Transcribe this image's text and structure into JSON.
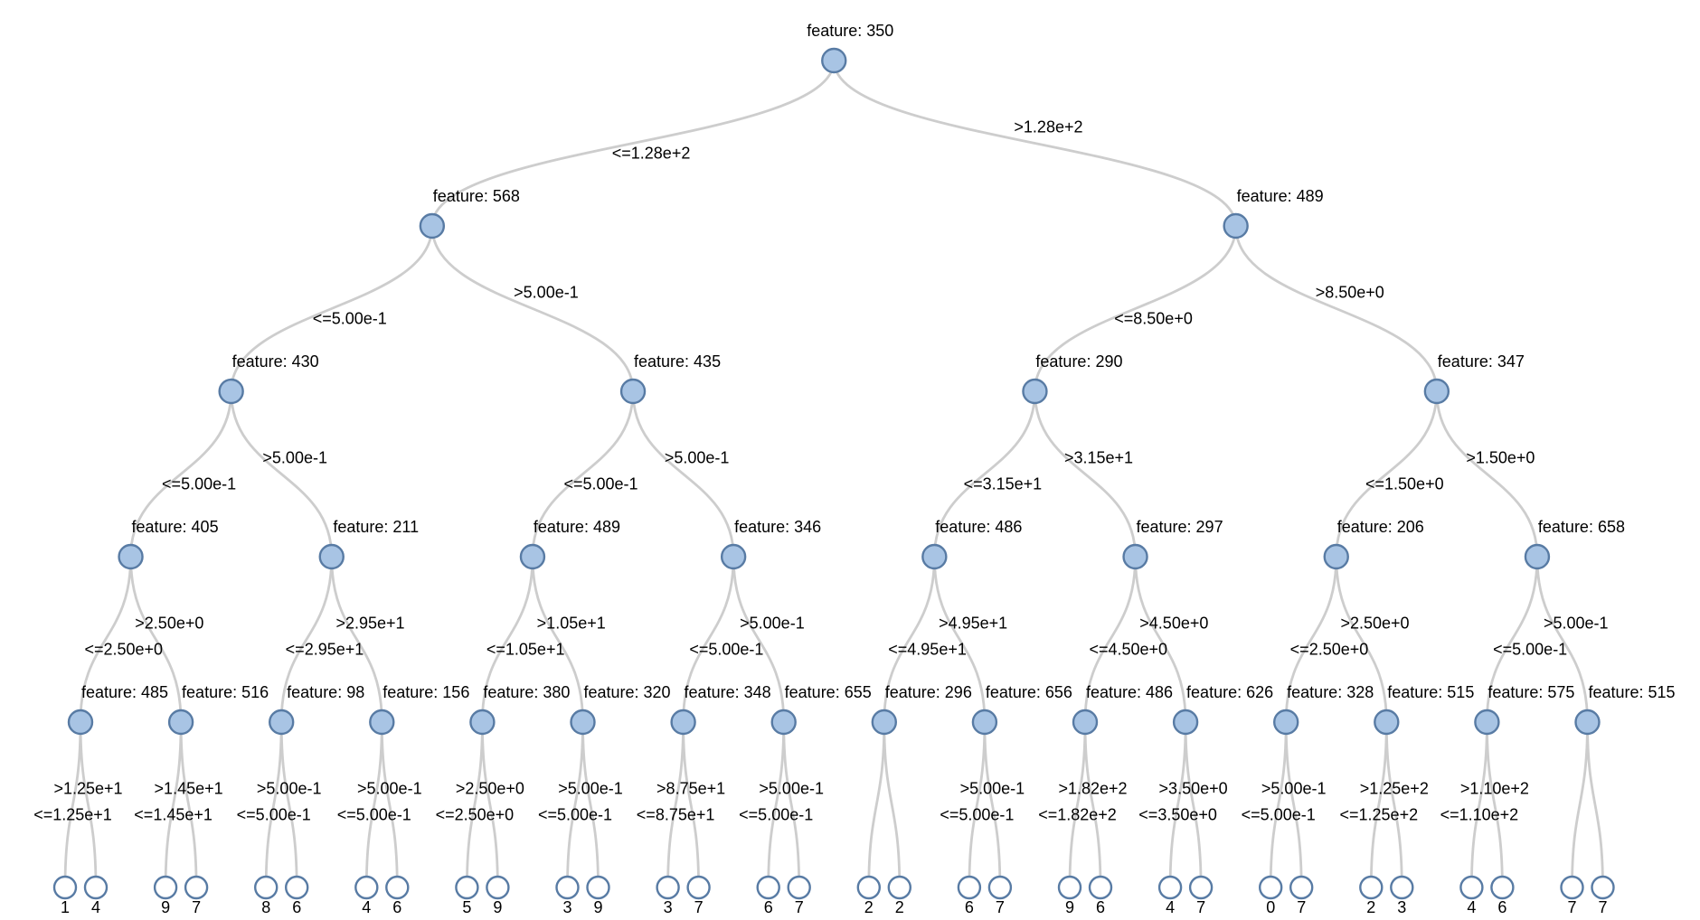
{
  "diagram": {
    "type": "decision-tree",
    "background": "#ffffff",
    "node_label_prefix": "feature: ",
    "colors": {
      "edge": "#cdcdcd",
      "internal_fill": "#a8c4e4",
      "internal_stroke": "#587ba4",
      "leaf_fill": "#ffffff",
      "leaf_stroke": "#587ba4",
      "text": "#000000"
    },
    "tree": {
      "feature": "350",
      "left_label": "<=1.28e+2",
      "right_label": ">1.28e+2",
      "left": {
        "feature": "568",
        "left_label": "<=5.00e-1",
        "right_label": ">5.00e-1",
        "left": {
          "feature": "430",
          "left_label": "<=5.00e-1",
          "right_label": ">5.00e-1",
          "left": {
            "feature": "405",
            "left_label": "<=2.50e+0",
            "right_label": ">2.50e+0",
            "left": {
              "feature": "485",
              "left_label": "<=1.25e+1",
              "right_label": ">1.25e+1",
              "left": {
                "value": "1"
              },
              "right": {
                "value": "4"
              }
            },
            "right": {
              "feature": "516",
              "left_label": "<=1.45e+1",
              "right_label": ">1.45e+1",
              "left": {
                "value": "9"
              },
              "right": {
                "value": "7"
              }
            }
          },
          "right": {
            "feature": "211",
            "left_label": "<=2.95e+1",
            "right_label": ">2.95e+1",
            "left": {
              "feature": "98",
              "left_label": "<=5.00e-1",
              "right_label": ">5.00e-1",
              "left": {
                "value": "8"
              },
              "right": {
                "value": "6"
              }
            },
            "right": {
              "feature": "156",
              "left_label": "<=5.00e-1",
              "right_label": ">5.00e-1",
              "left": {
                "value": "4"
              },
              "right": {
                "value": "6"
              }
            }
          }
        },
        "right": {
          "feature": "435",
          "left_label": "<=5.00e-1",
          "right_label": ">5.00e-1",
          "left": {
            "feature": "489",
            "left_label": "<=1.05e+1",
            "right_label": ">1.05e+1",
            "left": {
              "feature": "380",
              "left_label": "<=2.50e+0",
              "right_label": ">2.50e+0",
              "left": {
                "value": "5"
              },
              "right": {
                "value": "9"
              }
            },
            "right": {
              "feature": "320",
              "left_label": "<=5.00e-1",
              "right_label": ">5.00e-1",
              "left": {
                "value": "3"
              },
              "right": {
                "value": "9"
              }
            }
          },
          "right": {
            "feature": "346",
            "left_label": "<=5.00e-1",
            "right_label": ">5.00e-1",
            "left": {
              "feature": "348",
              "left_label": "<=8.75e+1",
              "right_label": ">8.75e+1",
              "left": {
                "value": "3"
              },
              "right": {
                "value": "7"
              }
            },
            "right": {
              "feature": "655",
              "left_label": "<=5.00e-1",
              "right_label": ">5.00e-1",
              "left": {
                "value": "6"
              },
              "right": {
                "value": "7"
              }
            }
          }
        }
      },
      "right": {
        "feature": "489",
        "left_label": "<=8.50e+0",
        "right_label": ">8.50e+0",
        "left": {
          "feature": "290",
          "left_label": "<=3.15e+1",
          "right_label": ">3.15e+1",
          "left": {
            "feature": "486",
            "left_label": "<=4.95e+1",
            "right_label": ">4.95e+1",
            "left": {
              "feature": "296",
              "left": {
                "value": "2"
              },
              "right": {
                "value": "2"
              }
            },
            "right": {
              "feature": "656",
              "left_label": "<=5.00e-1",
              "right_label": ">5.00e-1",
              "left": {
                "value": "6"
              },
              "right": {
                "value": "7"
              }
            }
          },
          "right": {
            "feature": "297",
            "left_label": "<=4.50e+0",
            "right_label": ">4.50e+0",
            "left": {
              "feature": "486",
              "left_label": "<=1.82e+2",
              "right_label": ">1.82e+2",
              "left": {
                "value": "9"
              },
              "right": {
                "value": "6"
              }
            },
            "right": {
              "feature": "626",
              "left_label": "<=3.50e+0",
              "right_label": ">3.50e+0",
              "left": {
                "value": "4"
              },
              "right": {
                "value": "7"
              }
            }
          }
        },
        "right": {
          "feature": "347",
          "left_label": "<=1.50e+0",
          "right_label": ">1.50e+0",
          "left": {
            "feature": "206",
            "left_label": "<=2.50e+0",
            "right_label": ">2.50e+0",
            "left": {
              "feature": "328",
              "left_label": "<=5.00e-1",
              "right_label": ">5.00e-1",
              "left": {
                "value": "0"
              },
              "right": {
                "value": "7"
              }
            },
            "right": {
              "feature": "515",
              "left_label": "<=1.25e+2",
              "right_label": ">1.25e+2",
              "left": {
                "value": "2"
              },
              "right": {
                "value": "3"
              }
            }
          },
          "right": {
            "feature": "658",
            "left_label": "<=5.00e-1",
            "right_label": ">5.00e-1",
            "left": {
              "feature": "575",
              "left_label": "<=1.10e+2",
              "right_label": ">1.10e+2",
              "left": {
                "value": "4"
              },
              "right": {
                "value": "6"
              }
            },
            "right": {
              "feature": "515",
              "left": {
                "value": "7"
              },
              "right": {
                "value": "7"
              }
            }
          }
        }
      }
    }
  }
}
